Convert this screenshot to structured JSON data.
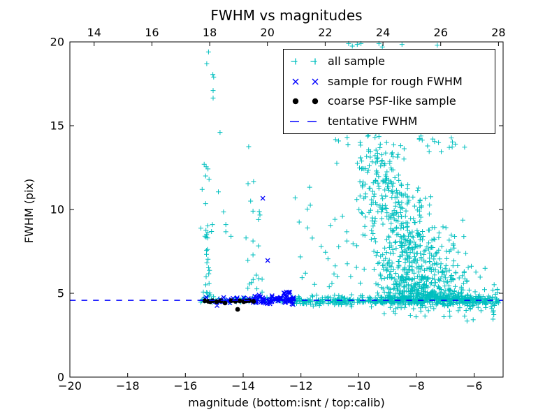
{
  "chart_data": {
    "type": "scatter",
    "title": "FWHM vs magnitudes",
    "xlabel": "magnitude (bottom:isnt / top:calib)",
    "ylabel": "FWHM (pix)",
    "grid": false,
    "legend_position": "upper right",
    "background_color": "#ffffff",
    "frame_color": "#000000",
    "x_axis_bottom": {
      "range": [
        -20,
        -5
      ],
      "values": [
        -20,
        -18,
        -16,
        -14,
        -12,
        -10,
        -8,
        -6
      ],
      "labels": [
        "−20",
        "−18",
        "−16",
        "−14",
        "−12",
        "−10",
        "−8",
        "−6"
      ]
    },
    "x_axis_top": {
      "range": [
        13.16,
        28.16
      ],
      "values": [
        14,
        16,
        18,
        20,
        22,
        24,
        26,
        28
      ],
      "labels": [
        "14",
        "16",
        "18",
        "20",
        "22",
        "24",
        "26",
        "28"
      ]
    },
    "y_axis": {
      "range": [
        0,
        20
      ],
      "values": [
        0,
        5,
        10,
        15,
        20
      ],
      "labels": [
        "0",
        "5",
        "10",
        "15",
        "20"
      ]
    },
    "tentative_fwhm": 4.58,
    "series": [
      {
        "name": "all sample",
        "marker": "plus",
        "color": "#00bfbf",
        "seed": 42,
        "points": [
          [
            -15.2,
            19.4
          ],
          [
            -15.26,
            18.7
          ],
          [
            -15.05,
            18.05
          ],
          [
            -15.02,
            17.9
          ],
          [
            -15.04,
            17.1
          ],
          [
            -15.04,
            16.65
          ],
          [
            -14.8,
            14.6
          ],
          [
            -15.35,
            12.7
          ],
          [
            -15.28,
            12.55
          ],
          [
            -15.22,
            12.42
          ],
          [
            -15.3,
            12.0
          ],
          [
            -15.18,
            11.8
          ],
          [
            -15.42,
            11.2
          ],
          [
            -14.86,
            11.05
          ],
          [
            -15.3,
            10.35
          ],
          [
            -13.81,
            13.75
          ],
          [
            -13.83,
            11.54
          ],
          [
            -13.64,
            11.67
          ],
          [
            -13.74,
            10.5
          ],
          [
            -13.66,
            9.9
          ],
          [
            -13.44,
            9.88
          ],
          [
            -13.42,
            9.67
          ],
          [
            -13.47,
            9.4
          ],
          [
            -14.68,
            9.86
          ],
          [
            -14.6,
            9.1
          ],
          [
            -14.6,
            8.67
          ],
          [
            -14.42,
            8.4
          ],
          [
            -13.9,
            8.3
          ],
          [
            -13.66,
            8.12
          ],
          [
            -13.47,
            7.83
          ],
          [
            -13.66,
            7.29
          ],
          [
            -12.2,
            10.7
          ],
          [
            -11.7,
            11.33
          ],
          [
            -12.06,
            9.25
          ],
          [
            -12.02,
            7.17
          ],
          [
            -11.3,
            7.8
          ],
          [
            -11.15,
            7.45
          ],
          [
            -10.35,
            19.9
          ],
          [
            -10.22,
            19.75
          ],
          [
            -10.05,
            19.85
          ],
          [
            -9.92,
            19.9
          ],
          [
            -9.3,
            19.9
          ],
          [
            -9.18,
            19.7
          ],
          [
            -8.5,
            19.85
          ],
          [
            -7.28,
            19.8
          ],
          [
            -10.8,
            14.17
          ],
          [
            -10.4,
            14.3
          ],
          [
            -9.95,
            14.0
          ],
          [
            -9.3,
            14.35
          ],
          [
            -9.25,
            13.9
          ],
          [
            -7.9,
            14.2
          ],
          [
            -7.37,
            14.05
          ]
        ],
        "clusters": [
          {
            "n": 30,
            "x": [
              "normal",
              -15.22,
              0.08
            ],
            "y": [
              "power",
              4.75,
              4.8,
              1.7
            ]
          },
          {
            "n": 55,
            "x": [
              "uniform",
              -15.5,
              -12.3
            ],
            "y": [
              "normal",
              4.58,
              0.1
            ]
          },
          {
            "n": 400,
            "x": [
              "uniform",
              -12.3,
              -5.15
            ],
            "y": [
              "normal",
              4.56,
              0.14
            ]
          },
          {
            "n": 45,
            "x": [
              "uniform",
              -9.2,
              -5.3
            ],
            "y": [
              "normal",
              4.05,
              0.3
            ]
          },
          {
            "n": 18,
            "x": [
              "uniform",
              -12.15,
              -10.2
            ],
            "y": [
              "uniform",
              5.2,
              11.0
            ]
          },
          {
            "n": 10,
            "x": [
              "normal",
              -13.6,
              0.15
            ],
            "y": [
              "uniform",
              5.0,
              7.0
            ]
          },
          {
            "n": 26,
            "x": [
              "uniform",
              -10.9,
              -6.3
            ],
            "y": [
              "uniform",
              13.4,
              14.6
            ]
          },
          {
            "type": "wedge",
            "n": 950,
            "f_base": 4.6,
            "f_range": 9.0,
            "f_exp": 2.6,
            "x_apex": -7.55,
            "x_slope": -0.22,
            "sx_base": 0.95,
            "sx_slope": -0.06,
            "sx_min": 0.3,
            "y_jitter": 0.18,
            "x_clip": [
              -11.75,
              -5.2
            ]
          }
        ]
      },
      {
        "name": "sample for rough FWHM",
        "marker": "x",
        "color": "#0000ff",
        "seed": 7,
        "points": [
          [
            -13.32,
            10.67
          ],
          [
            -13.15,
            6.96
          ]
        ],
        "clusters": [
          {
            "n": 70,
            "x": [
              "uniform",
              -15.35,
              -12.15
            ],
            "y": [
              "normal",
              4.62,
              0.11
            ]
          },
          {
            "n": 40,
            "x": [
              "uniform",
              -13.4,
              -12.2
            ],
            "y": [
              "normal",
              4.6,
              0.12
            ]
          },
          {
            "n": 6,
            "x": [
              "uniform",
              -12.7,
              -12.25
            ],
            "y": [
              "uniform",
              4.9,
              5.15
            ]
          }
        ]
      },
      {
        "name": "coarse PSF-like sample",
        "marker": "dot",
        "color": "#000000",
        "seed": 3,
        "points": [
          [
            -15.33,
            4.55
          ],
          [
            -15.21,
            4.52
          ],
          [
            -15.14,
            4.5
          ],
          [
            -15.06,
            4.56
          ],
          [
            -14.92,
            4.5
          ],
          [
            -14.77,
            4.55
          ],
          [
            -14.63,
            4.42
          ],
          [
            -14.41,
            4.56
          ],
          [
            -14.27,
            4.52
          ],
          [
            -14.12,
            4.55
          ],
          [
            -13.98,
            4.5
          ],
          [
            -13.9,
            4.54
          ],
          [
            -13.79,
            4.56
          ],
          [
            -13.64,
            4.52
          ],
          [
            -14.19,
            4.04
          ]
        ],
        "clusters": []
      },
      {
        "name": "tentative FWHM",
        "type": "hline",
        "style": "dashed",
        "color": "#0000ff",
        "y": 4.58
      }
    ]
  }
}
